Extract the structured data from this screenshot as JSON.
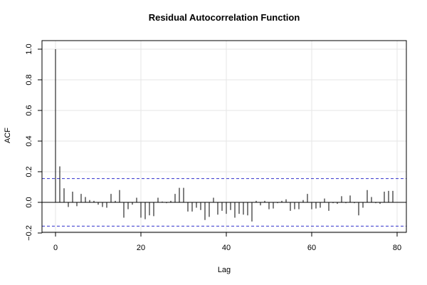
{
  "chart_data": {
    "type": "bar",
    "title": "Residual Autocorrelation Function",
    "xlabel": "Lag",
    "ylabel": "ACF",
    "xlim": [
      0,
      80
    ],
    "ylim": [
      -0.2,
      1.0
    ],
    "x_ticks": [
      0,
      20,
      40,
      60,
      80
    ],
    "x_tick_labels": [
      "0",
      "20",
      "40",
      "60",
      "80"
    ],
    "y_ticks": [
      -0.2,
      0.0,
      0.2,
      0.4,
      0.6,
      0.8,
      1.0
    ],
    "y_tick_labels": [
      "−0.2",
      "0.0",
      "0.2",
      "0.4",
      "0.6",
      "0.8",
      "1.0"
    ],
    "grid": true,
    "confidence_bounds": [
      0.155,
      -0.155
    ],
    "bound_color": "#3333cc",
    "bar_color": "#000000",
    "lags": [
      0,
      1,
      2,
      3,
      4,
      5,
      6,
      7,
      8,
      9,
      10,
      11,
      12,
      13,
      14,
      15,
      16,
      17,
      18,
      19,
      20,
      21,
      22,
      23,
      24,
      25,
      26,
      27,
      28,
      29,
      30,
      31,
      32,
      33,
      34,
      35,
      36,
      37,
      38,
      39,
      40,
      41,
      42,
      43,
      44,
      45,
      46,
      47,
      48,
      49,
      50,
      51,
      52,
      53,
      54,
      55,
      56,
      57,
      58,
      59,
      60,
      61,
      62,
      63,
      64,
      65,
      66,
      67,
      68,
      69,
      70,
      71,
      72,
      73,
      74,
      75,
      76,
      77,
      78,
      79
    ],
    "values": [
      1.0,
      0.235,
      0.092,
      -0.03,
      0.07,
      -0.025,
      0.055,
      0.035,
      0.015,
      0.01,
      -0.015,
      -0.03,
      -0.035,
      0.055,
      0.01,
      0.08,
      -0.1,
      -0.045,
      -0.015,
      0.03,
      -0.1,
      -0.11,
      -0.085,
      -0.09,
      0.03,
      0.005,
      -0.005,
      0.01,
      0.055,
      0.095,
      0.095,
      -0.06,
      -0.06,
      -0.035,
      -0.05,
      -0.115,
      -0.095,
      0.03,
      -0.08,
      -0.055,
      -0.075,
      -0.05,
      -0.1,
      -0.075,
      -0.08,
      -0.085,
      -0.125,
      0.01,
      -0.02,
      0.01,
      -0.045,
      -0.04,
      -0.005,
      0.01,
      0.02,
      -0.055,
      -0.045,
      -0.045,
      0.015,
      0.055,
      -0.045,
      -0.04,
      -0.035,
      0.025,
      -0.055,
      -0.005,
      -0.01,
      0.04,
      -0.005,
      0.045,
      -0.005,
      -0.085,
      -0.035,
      0.08,
      0.035,
      -0.005,
      -0.01,
      0.07,
      0.075,
      0.075
    ]
  }
}
